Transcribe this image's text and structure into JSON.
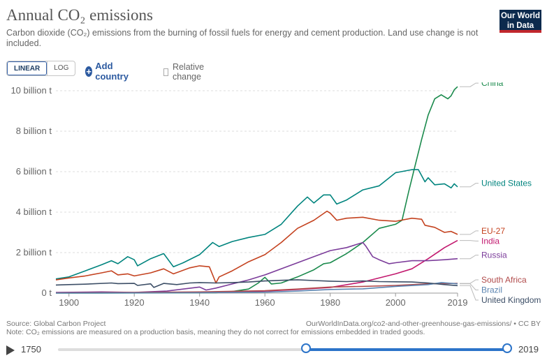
{
  "header": {
    "title": "Annual CO₂ emissions",
    "subtitle": "Carbon dioxide (CO₂) emissions from the burning of fossil fuels for energy and cement production. Land use change is not included.",
    "logo_line1": "Our World",
    "logo_line2": "in Data"
  },
  "controls": {
    "linear_label": "LINEAR",
    "log_label": "LOG",
    "add_country_label": "Add country",
    "relative_change_label": "Relative change",
    "relative_change_checked": false
  },
  "footer": {
    "source": "Source: Global Carbon Project",
    "note": "Note: CO₂ emissions are measured on a production basis, meaning they do not correct for emissions embedded in traded goods.",
    "url": "OurWorldInData.org/co2-and-other-greenhouse-gas-emissions/ • CC BY"
  },
  "timeline": {
    "start_label": "1750",
    "end_label": "2019"
  },
  "chart_data": {
    "type": "line",
    "title": "Annual CO₂ emissions",
    "xlim": [
      1896,
      2019
    ],
    "ylim": [
      0,
      10000000000
    ],
    "y_ticks": [
      0,
      2000000000,
      4000000000,
      6000000000,
      8000000000,
      10000000000
    ],
    "y_tick_labels": [
      "0 t",
      "2 billion t",
      "4 billion t",
      "6 billion t",
      "8 billion t",
      "10 billion t"
    ],
    "x_ticks": [
      1900,
      1920,
      1940,
      1960,
      1980,
      2000,
      2019
    ],
    "x_tick_labels": [
      "1900",
      "1920",
      "1940",
      "1960",
      "1980",
      "2000",
      "2019"
    ],
    "grid": "horizontal",
    "legend": "right",
    "series": [
      {
        "name": "China",
        "color": "#1a8a4c",
        "x": [
          1896,
          1910,
          1930,
          1945,
          1950,
          1955,
          1958,
          1960,
          1962,
          1965,
          1970,
          1975,
          1978,
          1980,
          1985,
          1990,
          1995,
          2000,
          2002,
          2004,
          2006,
          2008,
          2010,
          2012,
          2014,
          2015,
          2016,
          2017,
          2018,
          2019
        ],
        "y": [
          0,
          0,
          0.01,
          0.02,
          0.08,
          0.2,
          0.5,
          0.78,
          0.45,
          0.5,
          0.8,
          1.15,
          1.45,
          1.5,
          1.95,
          2.5,
          3.2,
          3.4,
          3.6,
          5.0,
          6.3,
          7.6,
          8.8,
          9.6,
          9.8,
          9.7,
          9.6,
          9.75,
          10.05,
          10.2
        ]
      },
      {
        "name": "United States",
        "color": "#00847e",
        "x": [
          1896,
          1900,
          1905,
          1910,
          1913,
          1915,
          1918,
          1920,
          1921,
          1925,
          1929,
          1932,
          1935,
          1940,
          1944,
          1946,
          1950,
          1955,
          1960,
          1965,
          1970,
          1973,
          1975,
          1978,
          1980,
          1982,
          1985,
          1990,
          1995,
          2000,
          2005,
          2007,
          2009,
          2010,
          2012,
          2015,
          2017,
          2018,
          2019
        ],
        "y": [
          0.7,
          0.8,
          1.1,
          1.4,
          1.6,
          1.45,
          1.8,
          1.65,
          1.35,
          1.7,
          1.95,
          1.3,
          1.5,
          1.9,
          2.5,
          2.3,
          2.55,
          2.75,
          2.9,
          3.4,
          4.3,
          4.75,
          4.45,
          4.85,
          4.85,
          4.4,
          4.6,
          5.1,
          5.3,
          5.95,
          6.1,
          6.1,
          5.5,
          5.7,
          5.35,
          5.4,
          5.2,
          5.4,
          5.25
        ]
      },
      {
        "name": "EU-27",
        "color": "#c4421f",
        "x": [
          1896,
          1900,
          1905,
          1910,
          1913,
          1915,
          1918,
          1920,
          1925,
          1929,
          1932,
          1937,
          1940,
          1943,
          1945,
          1946,
          1950,
          1955,
          1960,
          1965,
          1970,
          1975,
          1979,
          1980,
          1982,
          1985,
          1990,
          1995,
          2000,
          2005,
          2008,
          2009,
          2012,
          2015,
          2017,
          2019
        ],
        "y": [
          0.65,
          0.75,
          0.85,
          1.0,
          1.1,
          0.9,
          0.95,
          0.85,
          1.0,
          1.2,
          0.95,
          1.25,
          1.35,
          1.3,
          0.5,
          0.8,
          1.1,
          1.55,
          1.9,
          2.5,
          3.2,
          3.6,
          4.05,
          3.95,
          3.6,
          3.7,
          3.75,
          3.6,
          3.55,
          3.7,
          3.65,
          3.35,
          3.25,
          3.0,
          3.05,
          2.9
        ]
      },
      {
        "name": "India",
        "color": "#c2186e",
        "x": [
          1896,
          1940,
          1950,
          1960,
          1970,
          1980,
          1990,
          2000,
          2005,
          2010,
          2015,
          2019
        ],
        "y": [
          0.01,
          0.03,
          0.05,
          0.1,
          0.18,
          0.28,
          0.55,
          0.95,
          1.2,
          1.7,
          2.25,
          2.6
        ]
      },
      {
        "name": "Russia",
        "color": "#7b3c9a",
        "x": [
          1896,
          1910,
          1920,
          1930,
          1940,
          1942,
          1945,
          1950,
          1955,
          1960,
          1970,
          1975,
          1980,
          1985,
          1988,
          1990,
          1991,
          1993,
          1995,
          1998,
          2000,
          2005,
          2010,
          2015,
          2019
        ],
        "y": [
          0.03,
          0.06,
          0.03,
          0.1,
          0.3,
          0.15,
          0.25,
          0.45,
          0.65,
          0.9,
          1.5,
          1.8,
          2.1,
          2.25,
          2.4,
          2.5,
          2.3,
          1.8,
          1.65,
          1.45,
          1.5,
          1.6,
          1.6,
          1.65,
          1.7
        ]
      },
      {
        "name": "South Africa",
        "color": "#b04a4a",
        "x": [
          1896,
          1920,
          1940,
          1960,
          1970,
          1980,
          1990,
          2000,
          2010,
          2019
        ],
        "y": [
          0.01,
          0.03,
          0.06,
          0.12,
          0.2,
          0.3,
          0.33,
          0.38,
          0.46,
          0.48
        ]
      },
      {
        "name": "Brazil",
        "color": "#5b84b1",
        "x": [
          1896,
          1920,
          1940,
          1960,
          1970,
          1980,
          1990,
          2000,
          2010,
          2014,
          2019
        ],
        "y": [
          0.0,
          0.01,
          0.02,
          0.05,
          0.1,
          0.18,
          0.21,
          0.33,
          0.42,
          0.52,
          0.46
        ]
      },
      {
        "name": "United Kingdom",
        "color": "#3c4e66",
        "x": [
          1896,
          1900,
          1905,
          1913,
          1915,
          1920,
          1921,
          1925,
          1926,
          1929,
          1933,
          1937,
          1940,
          1945,
          1950,
          1955,
          1960,
          1965,
          1970,
          1975,
          1980,
          1985,
          1990,
          1995,
          2000,
          2005,
          2010,
          2015,
          2019
        ],
        "y": [
          0.4,
          0.42,
          0.44,
          0.5,
          0.47,
          0.48,
          0.38,
          0.46,
          0.28,
          0.48,
          0.42,
          0.5,
          0.52,
          0.5,
          0.52,
          0.55,
          0.6,
          0.63,
          0.66,
          0.62,
          0.59,
          0.57,
          0.6,
          0.57,
          0.56,
          0.55,
          0.5,
          0.42,
          0.37
        ]
      }
    ]
  }
}
